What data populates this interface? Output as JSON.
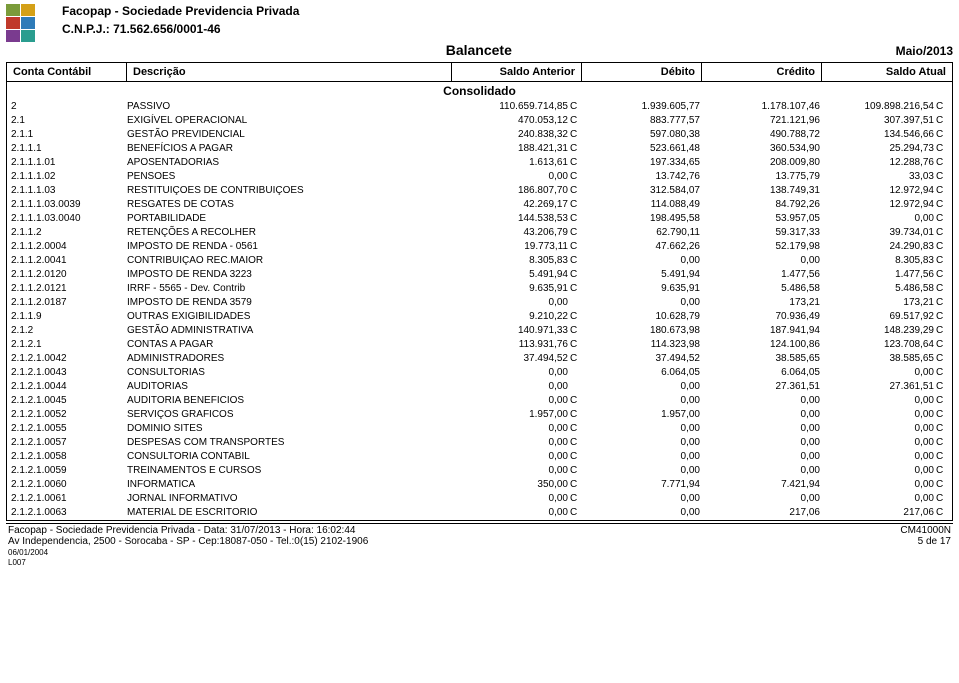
{
  "header": {
    "org": "Facopap - Sociedade Previdencia Privada",
    "cnpj_label": "C.N.P.J.: 71.562.656/0001-46",
    "title": "Balancete",
    "period": "Maio/2013"
  },
  "columns": {
    "conta": "Conta Contábil",
    "descricao": "Descrição",
    "saldo_anterior": "Saldo Anterior",
    "debito": "Débito",
    "credito": "Crédito",
    "saldo_atual": "Saldo Atual"
  },
  "subheader": "Consolidado",
  "rows": [
    {
      "conta": "2",
      "desc": "PASSIVO",
      "sa": "110.659.714,85",
      "saF": "C",
      "deb": "1.939.605,77",
      "cred": "1.178.107,46",
      "satu": "109.898.216,54",
      "satuF": "C"
    },
    {
      "conta": "2.1",
      "desc": "EXIGÍVEL OPERACIONAL",
      "sa": "470.053,12",
      "saF": "C",
      "deb": "883.777,57",
      "cred": "721.121,96",
      "satu": "307.397,51",
      "satuF": "C"
    },
    {
      "conta": "2.1.1",
      "desc": "GESTÃO PREVIDENCIAL",
      "sa": "240.838,32",
      "saF": "C",
      "deb": "597.080,38",
      "cred": "490.788,72",
      "satu": "134.546,66",
      "satuF": "C"
    },
    {
      "conta": "2.1.1.1",
      "desc": "BENEFÍCIOS A PAGAR",
      "sa": "188.421,31",
      "saF": "C",
      "deb": "523.661,48",
      "cred": "360.534,90",
      "satu": "25.294,73",
      "satuF": "C"
    },
    {
      "conta": "2.1.1.1.01",
      "desc": "APOSENTADORIAS",
      "sa": "1.613,61",
      "saF": "C",
      "deb": "197.334,65",
      "cred": "208.009,80",
      "satu": "12.288,76",
      "satuF": "C"
    },
    {
      "conta": "2.1.1.1.02",
      "desc": "PENSOES",
      "sa": "0,00",
      "saF": "C",
      "deb": "13.742,76",
      "cred": "13.775,79",
      "satu": "33,03",
      "satuF": "C"
    },
    {
      "conta": "2.1.1.1.03",
      "desc": "RESTITUIÇOES DE CONTRIBUIÇOES",
      "sa": "186.807,70",
      "saF": "C",
      "deb": "312.584,07",
      "cred": "138.749,31",
      "satu": "12.972,94",
      "satuF": "C"
    },
    {
      "conta": "2.1.1.1.03.0039",
      "desc": "RESGATES DE COTAS",
      "sa": "42.269,17",
      "saF": "C",
      "deb": "114.088,49",
      "cred": "84.792,26",
      "satu": "12.972,94",
      "satuF": "C"
    },
    {
      "conta": "2.1.1.1.03.0040",
      "desc": "PORTABILIDADE",
      "sa": "144.538,53",
      "saF": "C",
      "deb": "198.495,58",
      "cred": "53.957,05",
      "satu": "0,00",
      "satuF": "C"
    },
    {
      "conta": "2.1.1.2",
      "desc": "RETENÇÕES A RECOLHER",
      "sa": "43.206,79",
      "saF": "C",
      "deb": "62.790,11",
      "cred": "59.317,33",
      "satu": "39.734,01",
      "satuF": "C"
    },
    {
      "conta": "2.1.1.2.0004",
      "desc": "IMPOSTO DE RENDA - 0561",
      "sa": "19.773,11",
      "saF": "C",
      "deb": "47.662,26",
      "cred": "52.179,98",
      "satu": "24.290,83",
      "satuF": "C"
    },
    {
      "conta": "2.1.1.2.0041",
      "desc": "CONTRIBUIÇAO REC.MAIOR",
      "sa": "8.305,83",
      "saF": "C",
      "deb": "0,00",
      "cred": "0,00",
      "satu": "8.305,83",
      "satuF": "C"
    },
    {
      "conta": "2.1.1.2.0120",
      "desc": "IMPOSTO DE RENDA 3223",
      "sa": "5.491,94",
      "saF": "C",
      "deb": "5.491,94",
      "cred": "1.477,56",
      "satu": "1.477,56",
      "satuF": "C"
    },
    {
      "conta": "2.1.1.2.0121",
      "desc": "IRRF - 5565 - Dev. Contrib",
      "sa": "9.635,91",
      "saF": "C",
      "deb": "9.635,91",
      "cred": "5.486,58",
      "satu": "5.486,58",
      "satuF": "C"
    },
    {
      "conta": "2.1.1.2.0187",
      "desc": "IMPOSTO DE RENDA 3579",
      "sa": "0,00",
      "saF": "",
      "deb": "0,00",
      "cred": "173,21",
      "satu": "173,21",
      "satuF": "C"
    },
    {
      "conta": "2.1.1.9",
      "desc": "OUTRAS EXIGIBILIDADES",
      "sa": "9.210,22",
      "saF": "C",
      "deb": "10.628,79",
      "cred": "70.936,49",
      "satu": "69.517,92",
      "satuF": "C"
    },
    {
      "conta": "2.1.2",
      "desc": "GESTÃO ADMINISTRATIVA",
      "sa": "140.971,33",
      "saF": "C",
      "deb": "180.673,98",
      "cred": "187.941,94",
      "satu": "148.239,29",
      "satuF": "C"
    },
    {
      "conta": "2.1.2.1",
      "desc": "CONTAS A PAGAR",
      "sa": "113.931,76",
      "saF": "C",
      "deb": "114.323,98",
      "cred": "124.100,86",
      "satu": "123.708,64",
      "satuF": "C"
    },
    {
      "conta": "2.1.2.1.0042",
      "desc": "ADMINISTRADORES",
      "sa": "37.494,52",
      "saF": "C",
      "deb": "37.494,52",
      "cred": "38.585,65",
      "satu": "38.585,65",
      "satuF": "C"
    },
    {
      "conta": "2.1.2.1.0043",
      "desc": "CONSULTORIAS",
      "sa": "0,00",
      "saF": "",
      "deb": "6.064,05",
      "cred": "6.064,05",
      "satu": "0,00",
      "satuF": "C"
    },
    {
      "conta": "2.1.2.1.0044",
      "desc": "AUDITORIAS",
      "sa": "0,00",
      "saF": "",
      "deb": "0,00",
      "cred": "27.361,51",
      "satu": "27.361,51",
      "satuF": "C"
    },
    {
      "conta": "2.1.2.1.0045",
      "desc": "AUDITORIA BENEFICIOS",
      "sa": "0,00",
      "saF": "C",
      "deb": "0,00",
      "cred": "0,00",
      "satu": "0,00",
      "satuF": "C"
    },
    {
      "conta": "2.1.2.1.0052",
      "desc": "SERVIÇOS GRAFICOS",
      "sa": "1.957,00",
      "saF": "C",
      "deb": "1.957,00",
      "cred": "0,00",
      "satu": "0,00",
      "satuF": "C"
    },
    {
      "conta": "2.1.2.1.0055",
      "desc": "DOMINIO SITES",
      "sa": "0,00",
      "saF": "C",
      "deb": "0,00",
      "cred": "0,00",
      "satu": "0,00",
      "satuF": "C"
    },
    {
      "conta": "2.1.2.1.0057",
      "desc": "DESPESAS COM TRANSPORTES",
      "sa": "0,00",
      "saF": "C",
      "deb": "0,00",
      "cred": "0,00",
      "satu": "0,00",
      "satuF": "C"
    },
    {
      "conta": "2.1.2.1.0058",
      "desc": "CONSULTORIA CONTABIL",
      "sa": "0,00",
      "saF": "C",
      "deb": "0,00",
      "cred": "0,00",
      "satu": "0,00",
      "satuF": "C"
    },
    {
      "conta": "2.1.2.1.0059",
      "desc": "TREINAMENTOS E CURSOS",
      "sa": "0,00",
      "saF": "C",
      "deb": "0,00",
      "cred": "0,00",
      "satu": "0,00",
      "satuF": "C"
    },
    {
      "conta": "2.1.2.1.0060",
      "desc": "INFORMATICA",
      "sa": "350,00",
      "saF": "C",
      "deb": "7.771,94",
      "cred": "7.421,94",
      "satu": "0,00",
      "satuF": "C"
    },
    {
      "conta": "2.1.2.1.0061",
      "desc": "JORNAL INFORMATIVO",
      "sa": "0,00",
      "saF": "C",
      "deb": "0,00",
      "cred": "0,00",
      "satu": "0,00",
      "satuF": "C"
    },
    {
      "conta": "2.1.2.1.0063",
      "desc": "MATERIAL DE ESCRITORIO",
      "sa": "0,00",
      "saF": "C",
      "deb": "0,00",
      "cred": "217,06",
      "satu": "217,06",
      "satuF": "C"
    }
  ],
  "footer": {
    "line1_left": "Facopap - Sociedade Previdencia Privada - Data: 31/07/2013 - Hora: 16:02:44",
    "line1_right": "CM41000N",
    "line2_left": "Av Independencia, 2500 - Sorocaba - SP - Cep:18087-050 - Tel.:0(15)  2102-1906",
    "line2_right": "5 de 17",
    "small1": "06/01/2004",
    "small2": "L007"
  }
}
